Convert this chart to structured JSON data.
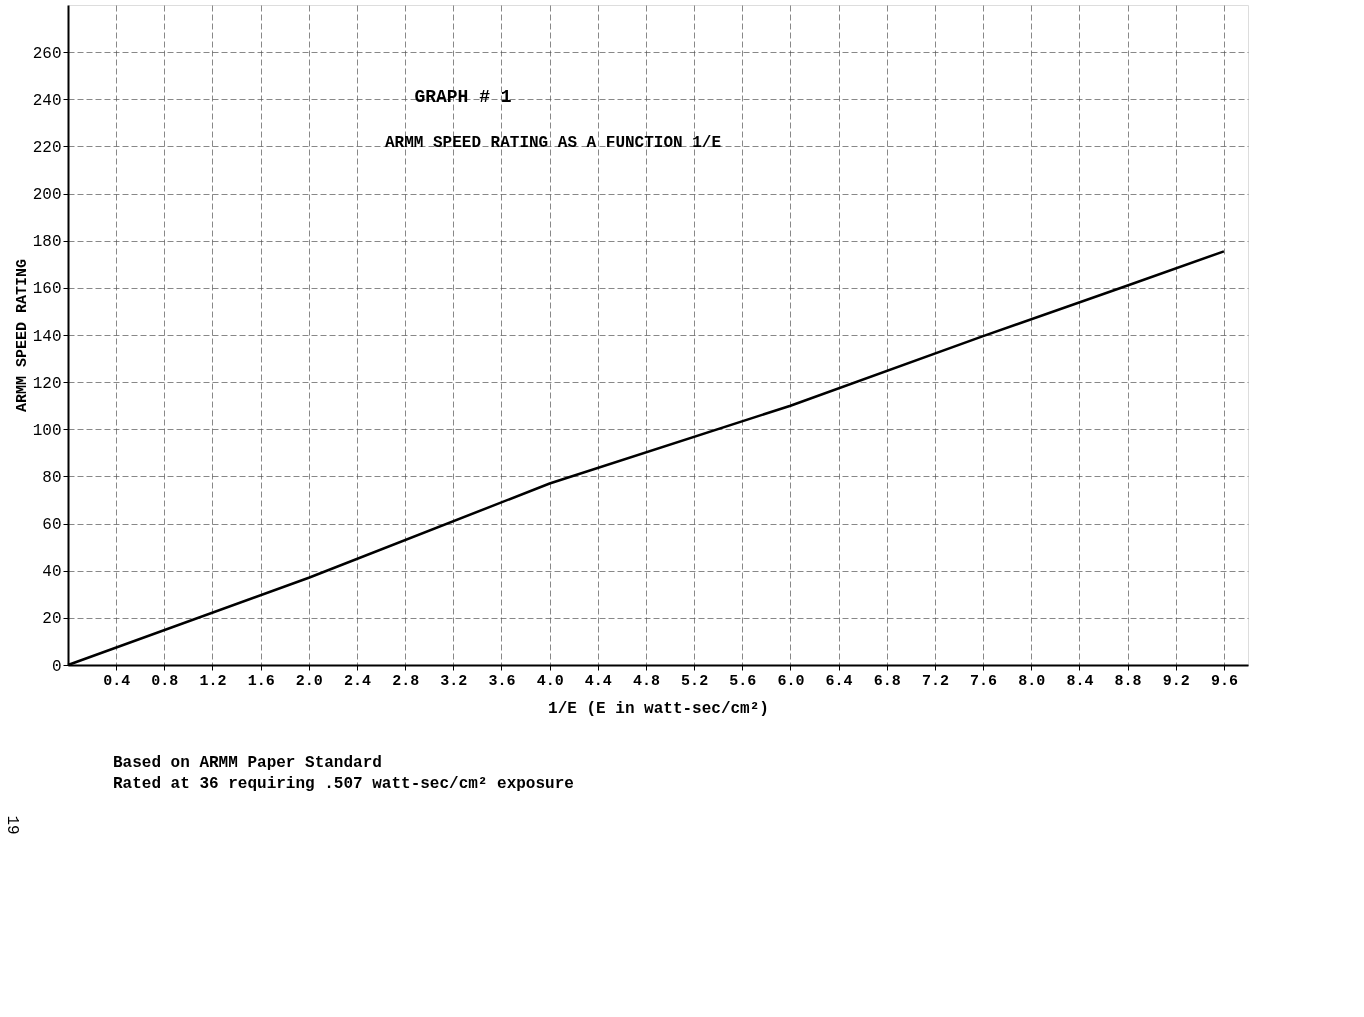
{
  "chart_data": {
    "type": "line",
    "title": "GRAPH # 1",
    "subtitle": "ARMM SPEED RATING AS A FUNCTION 1/E",
    "xlabel": "1/E (E in watt-sec/cm²)",
    "ylabel": "ARMM SPEED RATING",
    "x": [
      0,
      2.0,
      4.0,
      6.0,
      7.6,
      8.8,
      9.6
    ],
    "series": [
      {
        "color": "#000000",
        "values": [
          0,
          37,
          77,
          110,
          139.5,
          161,
          175.5
        ]
      }
    ],
    "xlim": [
      0,
      9.8
    ],
    "ylim": [
      0,
      280
    ],
    "xticks": [
      {
        "value": 0.4,
        "label": "0.4"
      },
      {
        "value": 0.8,
        "label": "0.8"
      },
      {
        "value": 1.2,
        "label": "1.2"
      },
      {
        "value": 1.6,
        "label": "1.6"
      },
      {
        "value": 2.0,
        "label": "2.0"
      },
      {
        "value": 2.4,
        "label": "2.4"
      },
      {
        "value": 2.8,
        "label": "2.8"
      },
      {
        "value": 3.2,
        "label": "3.2"
      },
      {
        "value": 3.6,
        "label": "3.6"
      },
      {
        "value": 4.0,
        "label": "4.0"
      },
      {
        "value": 4.4,
        "label": "4.4"
      },
      {
        "value": 4.8,
        "label": "4.8"
      },
      {
        "value": 5.2,
        "label": "5.2"
      },
      {
        "value": 5.6,
        "label": "5.6"
      },
      {
        "value": 6.0,
        "label": "6.0"
      },
      {
        "value": 6.4,
        "label": "6.4"
      },
      {
        "value": 6.8,
        "label": "6.8"
      },
      {
        "value": 7.2,
        "label": "7.2"
      },
      {
        "value": 7.6,
        "label": "7.6"
      },
      {
        "value": 8.0,
        "label": "8.0"
      },
      {
        "value": 8.4,
        "label": "8.4"
      },
      {
        "value": 8.8,
        "label": "8.8"
      },
      {
        "value": 9.2,
        "label": "9.2"
      },
      {
        "value": 9.6,
        "label": "9.6"
      }
    ],
    "yticks": [
      0,
      20,
      40,
      60,
      80,
      100,
      120,
      140,
      160,
      180,
      200,
      220,
      240,
      260
    ],
    "grid": true,
    "line_style": "solid",
    "marker": "none",
    "annotations": [
      "Based on ARMM Paper Standard",
      "Rated at 36 requiring .507 watt-sec/cm² exposure",
      "19"
    ]
  }
}
